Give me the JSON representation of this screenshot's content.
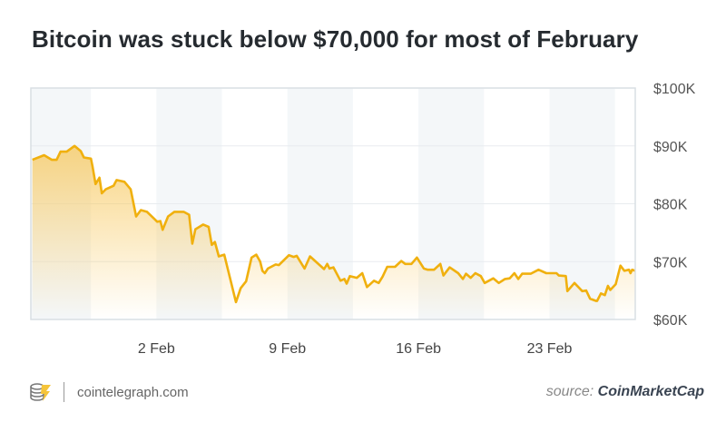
{
  "title": "Bitcoin was stuck below $70,000 for most of February",
  "footer": {
    "site": "cointelegraph.com",
    "source_prefix": "source:",
    "source_name": "CoinMarketCap",
    "logo_icon": "cointelegraph-coin-stack-logo"
  },
  "colors": {
    "line": "#f0b00e",
    "fill_top": "#f7c75a",
    "band": "#f4f7f9",
    "grid": "#e8ecef",
    "border": "#d9dfe4"
  },
  "chart_data": {
    "type": "area",
    "title": "Bitcoin was stuck below $70,000 for most of February",
    "xlabel": "",
    "ylabel": "",
    "xlim": [
      "01-26 07",
      "02-27 14"
    ],
    "ylim": [
      60000,
      100000
    ],
    "y_axis_position": "right",
    "grid": true,
    "x_ticks": [
      {
        "x": "02-02 00",
        "label": "2 Feb"
      },
      {
        "x": "02-09 00",
        "label": "9 Feb"
      },
      {
        "x": "02-16 00",
        "label": "16 Feb"
      },
      {
        "x": "02-23 00",
        "label": "23 Feb"
      }
    ],
    "y_ticks": [
      {
        "y": 100000,
        "label": "$100K"
      },
      {
        "y": 90000,
        "label": "$90K"
      },
      {
        "y": 80000,
        "label": "$80K"
      },
      {
        "y": 70000,
        "label": "$70K"
      },
      {
        "y": 60000,
        "label": "$60K"
      }
    ],
    "points": [
      [
        "01-26 09",
        87600
      ],
      [
        "01-27 00",
        88400
      ],
      [
        "01-27 10",
        87600
      ],
      [
        "01-27 16",
        87600
      ],
      [
        "01-27 21",
        89000
      ],
      [
        "01-28 05",
        89000
      ],
      [
        "01-28 15",
        90000
      ],
      [
        "01-28 23",
        89100
      ],
      [
        "01-29 03",
        88000
      ],
      [
        "01-29 12",
        87800
      ],
      [
        "01-29 14",
        86500
      ],
      [
        "01-29 18",
        83400
      ],
      [
        "01-29 23",
        84500
      ],
      [
        "01-30 02",
        81800
      ],
      [
        "01-30 07",
        82500
      ],
      [
        "01-30 17",
        83100
      ],
      [
        "01-30 21",
        84100
      ],
      [
        "01-31 07",
        83800
      ],
      [
        "01-31 15",
        82500
      ],
      [
        "01-31 22",
        77800
      ],
      [
        "02-01 04",
        78900
      ],
      [
        "02-01 12",
        78600
      ],
      [
        "02-01 22",
        77300
      ],
      [
        "02-02 01",
        76900
      ],
      [
        "02-02 05",
        77000
      ],
      [
        "02-02 08",
        75500
      ],
      [
        "02-02 15",
        77800
      ],
      [
        "02-02 23",
        78600
      ],
      [
        "02-03 11",
        78600
      ],
      [
        "02-03 18",
        78100
      ],
      [
        "02-03 22",
        73100
      ],
      [
        "02-04 02",
        75600
      ],
      [
        "02-04 12",
        76400
      ],
      [
        "02-04 19",
        76000
      ],
      [
        "02-04 23",
        72900
      ],
      [
        "02-05 03",
        73400
      ],
      [
        "02-05 08",
        70900
      ],
      [
        "02-05 15",
        71200
      ],
      [
        "02-06 06",
        63000
      ],
      [
        "02-06 12",
        65400
      ],
      [
        "02-06 19",
        66600
      ],
      [
        "02-07 02",
        70700
      ],
      [
        "02-07 08",
        71200
      ],
      [
        "02-07 13",
        70000
      ],
      [
        "02-07 16",
        68400
      ],
      [
        "02-07 19",
        68000
      ],
      [
        "02-07 23",
        68800
      ],
      [
        "02-08 09",
        69500
      ],
      [
        "02-08 13",
        69400
      ],
      [
        "02-09 02",
        71100
      ],
      [
        "02-09 08",
        70800
      ],
      [
        "02-09 12",
        71000
      ],
      [
        "02-09 22",
        68800
      ],
      [
        "02-10 05",
        70900
      ],
      [
        "02-10 23",
        68700
      ],
      [
        "02-11 03",
        69600
      ],
      [
        "02-11 06",
        68800
      ],
      [
        "02-11 11",
        69000
      ],
      [
        "02-11 20",
        66700
      ],
      [
        "02-12 01",
        67000
      ],
      [
        "02-12 04",
        66200
      ],
      [
        "02-12 08",
        67500
      ],
      [
        "02-12 17",
        67200
      ],
      [
        "02-13 00",
        68000
      ],
      [
        "02-13 06",
        65600
      ],
      [
        "02-13 15",
        66700
      ],
      [
        "02-13 21",
        66300
      ],
      [
        "02-14 02",
        67400
      ],
      [
        "02-14 08",
        69100
      ],
      [
        "02-14 18",
        69100
      ],
      [
        "02-15 02",
        70100
      ],
      [
        "02-15 07",
        69600
      ],
      [
        "02-15 15",
        69600
      ],
      [
        "02-15 22",
        70700
      ],
      [
        "02-16 07",
        68800
      ],
      [
        "02-16 12",
        68600
      ],
      [
        "02-16 20",
        68600
      ],
      [
        "02-17 04",
        69600
      ],
      [
        "02-17 08",
        67600
      ],
      [
        "02-17 16",
        69000
      ],
      [
        "02-18 03",
        68000
      ],
      [
        "02-18 09",
        67000
      ],
      [
        "02-18 13",
        67900
      ],
      [
        "02-18 19",
        67200
      ],
      [
        "02-19 01",
        68000
      ],
      [
        "02-19 08",
        67500
      ],
      [
        "02-19 13",
        66300
      ],
      [
        "02-20 00",
        67100
      ],
      [
        "02-20 07",
        66300
      ],
      [
        "02-20 15",
        67000
      ],
      [
        "02-20 21",
        67100
      ],
      [
        "02-21 03",
        68000
      ],
      [
        "02-21 08",
        67000
      ],
      [
        "02-21 13",
        67900
      ],
      [
        "02-22 00",
        67900
      ],
      [
        "02-22 10",
        68600
      ],
      [
        "02-22 20",
        68000
      ],
      [
        "02-23 09",
        68000
      ],
      [
        "02-23 12",
        67600
      ],
      [
        "02-23 21",
        67500
      ],
      [
        "02-23 23",
        64900
      ],
      [
        "02-24 08",
        66300
      ],
      [
        "02-24 18",
        64900
      ],
      [
        "02-24 23",
        65000
      ],
      [
        "02-25 04",
        63600
      ],
      [
        "02-25 12",
        63200
      ],
      [
        "02-25 13",
        63200
      ],
      [
        "02-25 18",
        64500
      ],
      [
        "02-25 23",
        64200
      ],
      [
        "02-26 03",
        65800
      ],
      [
        "02-26 06",
        65100
      ],
      [
        "02-26 13",
        66100
      ],
      [
        "02-26 19",
        69300
      ],
      [
        "02-27 00",
        68400
      ],
      [
        "02-27 06",
        68600
      ],
      [
        "02-27 08",
        68000
      ],
      [
        "02-27 10",
        68600
      ],
      [
        "02-27 14",
        68400
      ]
    ]
  }
}
